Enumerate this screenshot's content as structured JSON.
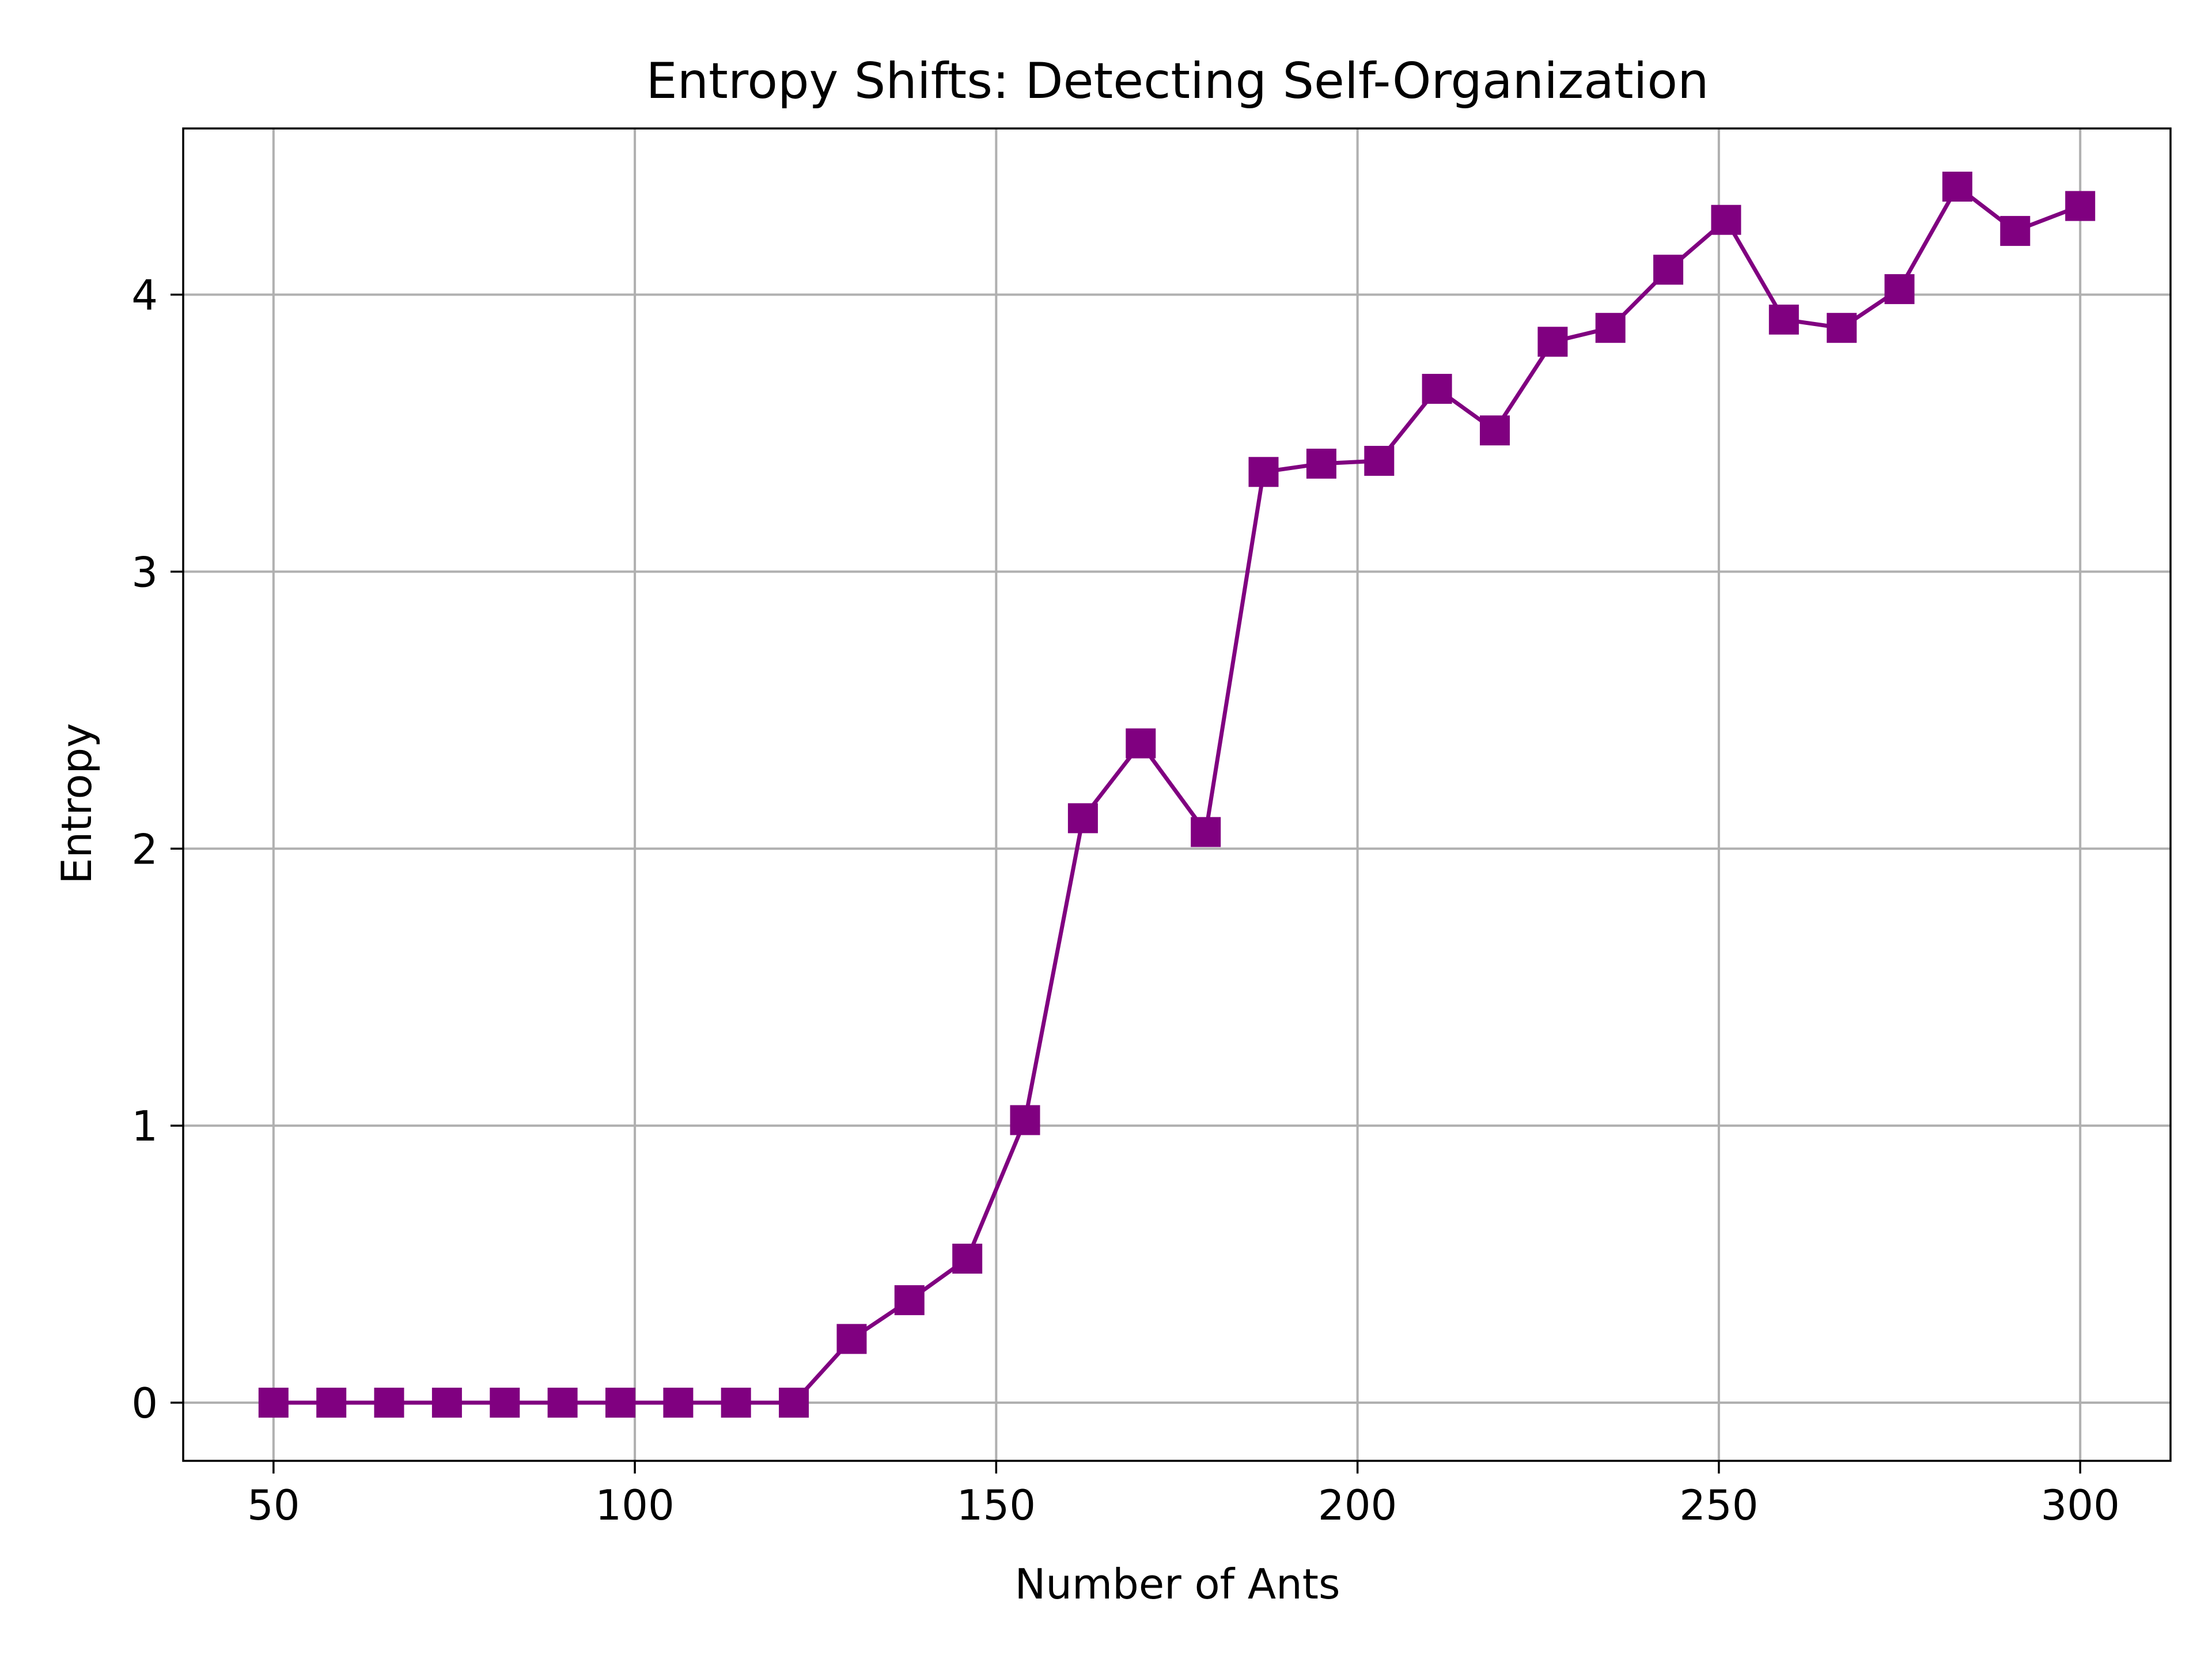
{
  "chart_data": {
    "type": "line",
    "title": "Entropy Shifts: Detecting Self-Organization",
    "xlabel": "Number of Ants",
    "ylabel": "Entropy",
    "xlim": [
      37.5,
      312.5
    ],
    "ylim": [
      -0.21,
      4.6
    ],
    "xticks": [
      50,
      100,
      150,
      200,
      250,
      300
    ],
    "yticks": [
      0,
      1,
      2,
      3,
      4
    ],
    "grid": true,
    "legend": "none",
    "series": [
      {
        "color": "#800080",
        "marker": "square",
        "x": [
          50,
          58,
          66,
          74,
          82,
          90,
          98,
          106,
          114,
          122,
          130,
          138,
          146,
          154,
          162,
          170,
          179,
          187,
          195,
          203,
          211,
          219,
          227,
          235,
          243,
          251,
          259,
          267,
          275,
          283,
          291,
          300
        ],
        "y": [
          0,
          0,
          0,
          0,
          0,
          0,
          0,
          0,
          0,
          0,
          0.23,
          0.37,
          0.52,
          1.02,
          2.11,
          2.38,
          2.06,
          3.36,
          3.39,
          3.4,
          3.66,
          3.51,
          3.83,
          3.88,
          4.09,
          4.27,
          3.91,
          3.88,
          4.02,
          4.39,
          4.23,
          4.32
        ]
      }
    ]
  }
}
